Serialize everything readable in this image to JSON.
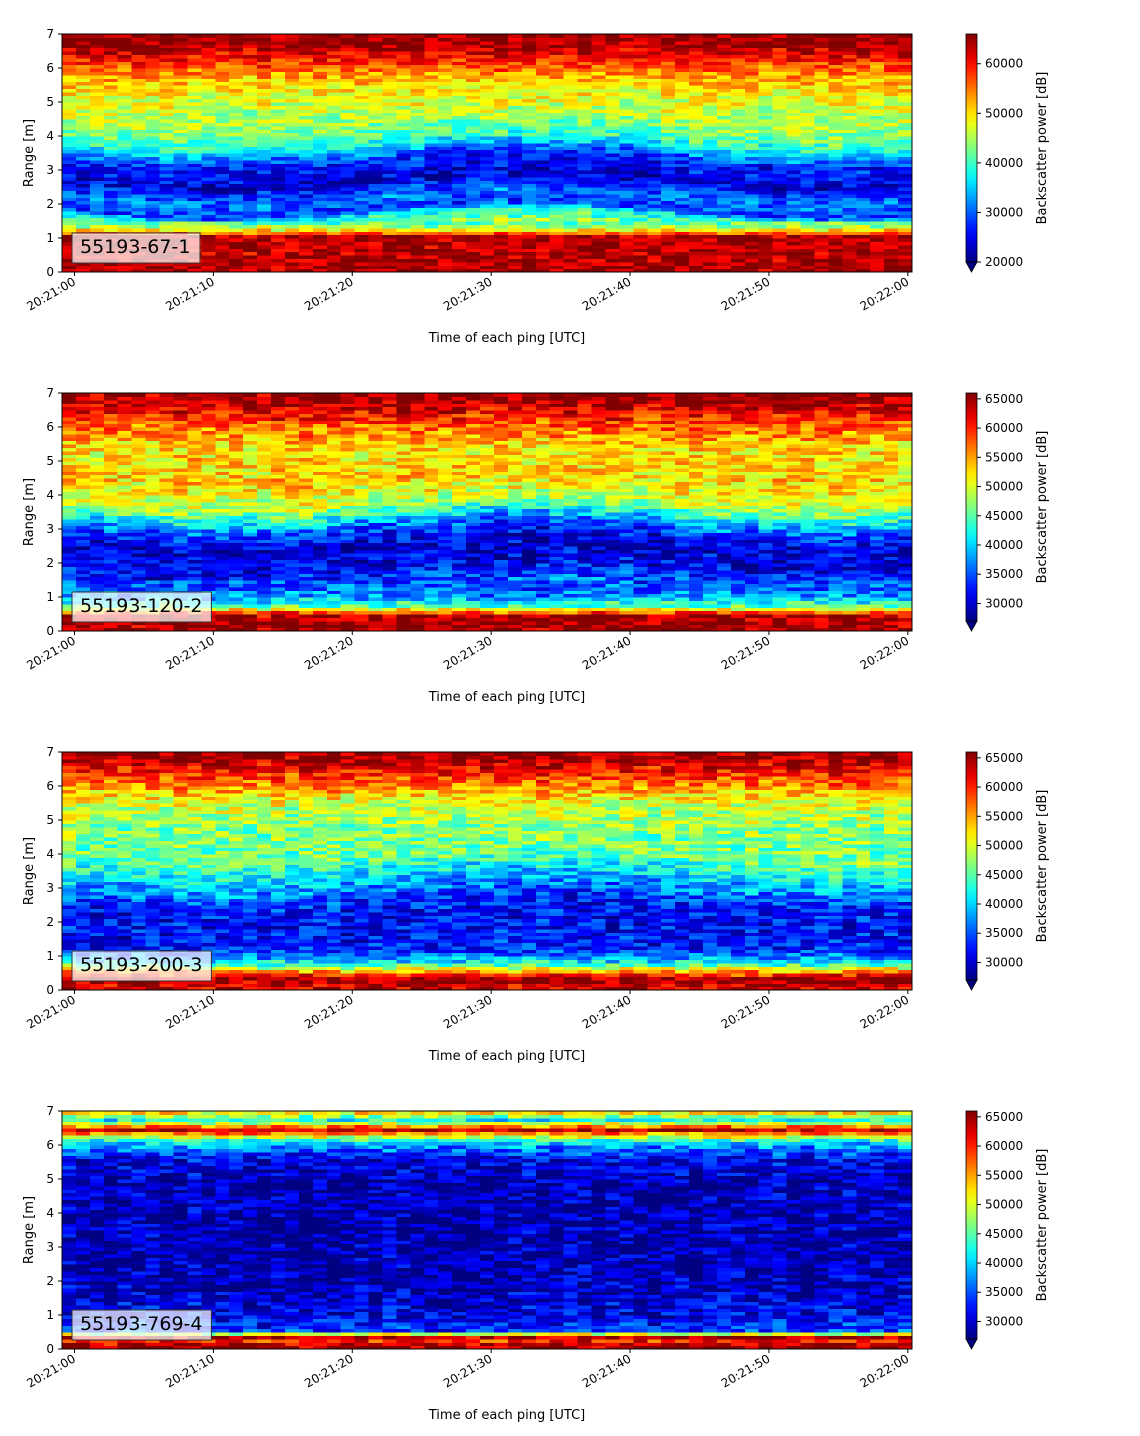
{
  "chart_data": [
    {
      "type": "heatmap",
      "panel_label": "55193-67-1",
      "xlabel": "Time of each ping [UTC]",
      "ylabel": "Range [m]",
      "x_ticks": [
        "20:21:00",
        "20:21:10",
        "20:21:20",
        "20:21:30",
        "20:21:40",
        "20:21:50",
        "20:22:00"
      ],
      "xlim": [
        "20:21:00",
        "20:22:00"
      ],
      "ylim": [
        0,
        7
      ],
      "y_ticks": [
        0,
        1,
        2,
        3,
        4,
        5,
        6,
        7
      ],
      "colormap": "jet",
      "colorbar": {
        "label": "Backscatter power [dB]",
        "range": [
          20000,
          66000
        ],
        "ticks": [
          20000,
          30000,
          40000,
          50000,
          60000
        ],
        "extend": "min"
      },
      "range_profile": [
        {
          "range": 0.25,
          "value": 64000
        },
        {
          "range": 0.6,
          "value": 63000
        },
        {
          "range": 1.05,
          "value": 64000
        },
        {
          "range": 1.2,
          "value": 52000
        },
        {
          "range": 1.4,
          "value": 42000
        },
        {
          "range": 1.65,
          "value": 39000
        },
        {
          "range": 1.85,
          "value": 28000
        },
        {
          "range": 2.2,
          "value": 31000
        },
        {
          "range": 2.7,
          "value": 24000
        },
        {
          "range": 3.3,
          "value": 27000
        },
        {
          "range": 3.9,
          "value": 40000
        },
        {
          "range": 4.5,
          "value": 45000
        },
        {
          "range": 5.2,
          "value": 48000
        },
        {
          "range": 5.8,
          "value": 53000
        },
        {
          "range": 6.3,
          "value": 60000
        },
        {
          "range": 6.75,
          "value": 65000
        }
      ]
    },
    {
      "type": "heatmap",
      "panel_label": "55193-120-2",
      "xlabel": "Time of each ping [UTC]",
      "ylabel": "Range [m]",
      "x_ticks": [
        "20:21:00",
        "20:21:10",
        "20:21:20",
        "20:21:30",
        "20:21:40",
        "20:21:50",
        "20:22:00"
      ],
      "xlim": [
        "20:21:00",
        "20:22:00"
      ],
      "ylim": [
        0,
        7
      ],
      "y_ticks": [
        0,
        1,
        2,
        3,
        4,
        5,
        6,
        7
      ],
      "colormap": "jet",
      "colorbar": {
        "label": "Backscatter power [dB]",
        "range": [
          27000,
          66000
        ],
        "ticks": [
          30000,
          35000,
          40000,
          45000,
          50000,
          55000,
          60000,
          65000
        ],
        "extend": "min"
      },
      "range_profile": [
        {
          "range": 0.2,
          "value": 65000
        },
        {
          "range": 0.45,
          "value": 64000
        },
        {
          "range": 0.75,
          "value": 45000
        },
        {
          "range": 1.05,
          "value": 37000
        },
        {
          "range": 1.4,
          "value": 35000
        },
        {
          "range": 2.0,
          "value": 31000
        },
        {
          "range": 2.6,
          "value": 30000
        },
        {
          "range": 3.1,
          "value": 36000
        },
        {
          "range": 3.8,
          "value": 49000
        },
        {
          "range": 4.6,
          "value": 53000
        },
        {
          "range": 5.3,
          "value": 52000
        },
        {
          "range": 5.9,
          "value": 56000
        },
        {
          "range": 6.4,
          "value": 61000
        },
        {
          "range": 6.8,
          "value": 65000
        }
      ]
    },
    {
      "type": "heatmap",
      "panel_label": "55193-200-3",
      "xlabel": "Time of each ping [UTC]",
      "ylabel": "Range [m]",
      "x_ticks": [
        "20:21:00",
        "20:21:10",
        "20:21:20",
        "20:21:30",
        "20:21:40",
        "20:21:50",
        "20:22:00"
      ],
      "xlim": [
        "20:21:00",
        "20:22:00"
      ],
      "ylim": [
        0,
        7
      ],
      "y_ticks": [
        0,
        1,
        2,
        3,
        4,
        5,
        6,
        7
      ],
      "colormap": "jet",
      "colorbar": {
        "label": "Backscatter power [dB]",
        "range": [
          27000,
          66000
        ],
        "ticks": [
          30000,
          35000,
          40000,
          45000,
          50000,
          55000,
          60000,
          65000
        ],
        "extend": "min"
      },
      "range_profile": [
        {
          "range": 0.15,
          "value": 63000
        },
        {
          "range": 0.35,
          "value": 65000
        },
        {
          "range": 0.55,
          "value": 55000
        },
        {
          "range": 0.8,
          "value": 42000
        },
        {
          "range": 1.2,
          "value": 33000
        },
        {
          "range": 1.9,
          "value": 32000
        },
        {
          "range": 2.6,
          "value": 33000
        },
        {
          "range": 3.2,
          "value": 39000
        },
        {
          "range": 4.0,
          "value": 46000
        },
        {
          "range": 4.8,
          "value": 47000
        },
        {
          "range": 5.5,
          "value": 50000
        },
        {
          "range": 6.1,
          "value": 57000
        },
        {
          "range": 6.55,
          "value": 62000
        },
        {
          "range": 6.85,
          "value": 65000
        }
      ]
    },
    {
      "type": "heatmap",
      "panel_label": "55193-769-4",
      "xlabel": "Time of each ping [UTC]",
      "ylabel": "Range [m]",
      "x_ticks": [
        "20:21:00",
        "20:21:10",
        "20:21:20",
        "20:21:30",
        "20:21:40",
        "20:21:50",
        "20:22:00"
      ],
      "xlim": [
        "20:21:00",
        "20:22:00"
      ],
      "ylim": [
        0,
        7
      ],
      "y_ticks": [
        0,
        1,
        2,
        3,
        4,
        5,
        6,
        7
      ],
      "colormap": "jet",
      "colorbar": {
        "label": "Backscatter power [dB]",
        "range": [
          27000,
          66000
        ],
        "ticks": [
          30000,
          35000,
          40000,
          45000,
          50000,
          55000,
          60000,
          65000
        ],
        "extend": "min"
      },
      "range_profile": [
        {
          "range": 0.1,
          "value": 65000
        },
        {
          "range": 0.25,
          "value": 60000
        },
        {
          "range": 0.35,
          "value": 64000
        },
        {
          "range": 0.55,
          "value": 34000
        },
        {
          "range": 1.0,
          "value": 31000
        },
        {
          "range": 2.0,
          "value": 29000
        },
        {
          "range": 3.5,
          "value": 28500
        },
        {
          "range": 5.0,
          "value": 29000
        },
        {
          "range": 5.6,
          "value": 31000
        },
        {
          "range": 6.1,
          "value": 40000
        },
        {
          "range": 6.45,
          "value": 63000
        },
        {
          "range": 6.75,
          "value": 42000
        },
        {
          "range": 6.95,
          "value": 52000
        }
      ]
    }
  ]
}
